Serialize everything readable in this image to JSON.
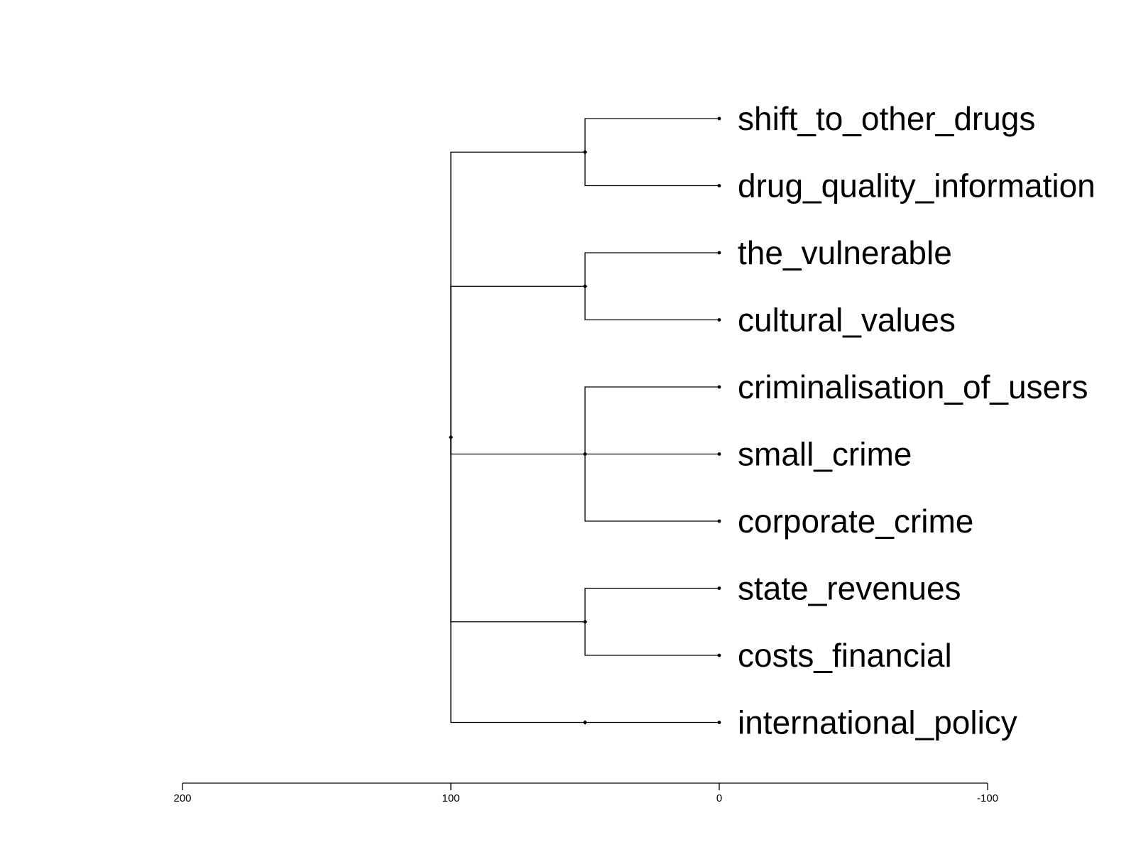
{
  "tree": {
    "height": 100,
    "children": [
      {
        "height": 50,
        "children": [
          {
            "leaf": "shift_to_other_drugs",
            "height": 0
          },
          {
            "leaf": "drug_quality_information",
            "height": 0
          }
        ]
      },
      {
        "height": 50,
        "children": [
          {
            "leaf": "the_vulnerable",
            "height": 0
          },
          {
            "leaf": "cultural_values",
            "height": 0
          }
        ]
      },
      {
        "height": 50,
        "children": [
          {
            "leaf": "criminalisation_of_users",
            "height": 0
          },
          {
            "leaf": "small_crime",
            "height": 0
          },
          {
            "leaf": "corporate_crime",
            "height": 0
          }
        ]
      },
      {
        "height": 50,
        "children": [
          {
            "leaf": "state_revenues",
            "height": 0
          },
          {
            "leaf": "costs_financial",
            "height": 0
          }
        ]
      },
      {
        "height": 50,
        "children": [
          {
            "leaf": "international_policy",
            "height": 0
          }
        ]
      }
    ]
  },
  "axis": {
    "ticks": [
      200,
      100,
      0,
      -100
    ],
    "tick_labels": [
      "200",
      "100",
      "0",
      "-100"
    ],
    "range": [
      200,
      -100
    ]
  },
  "colors": {
    "lines": "#000000",
    "background": "#ffffff"
  }
}
